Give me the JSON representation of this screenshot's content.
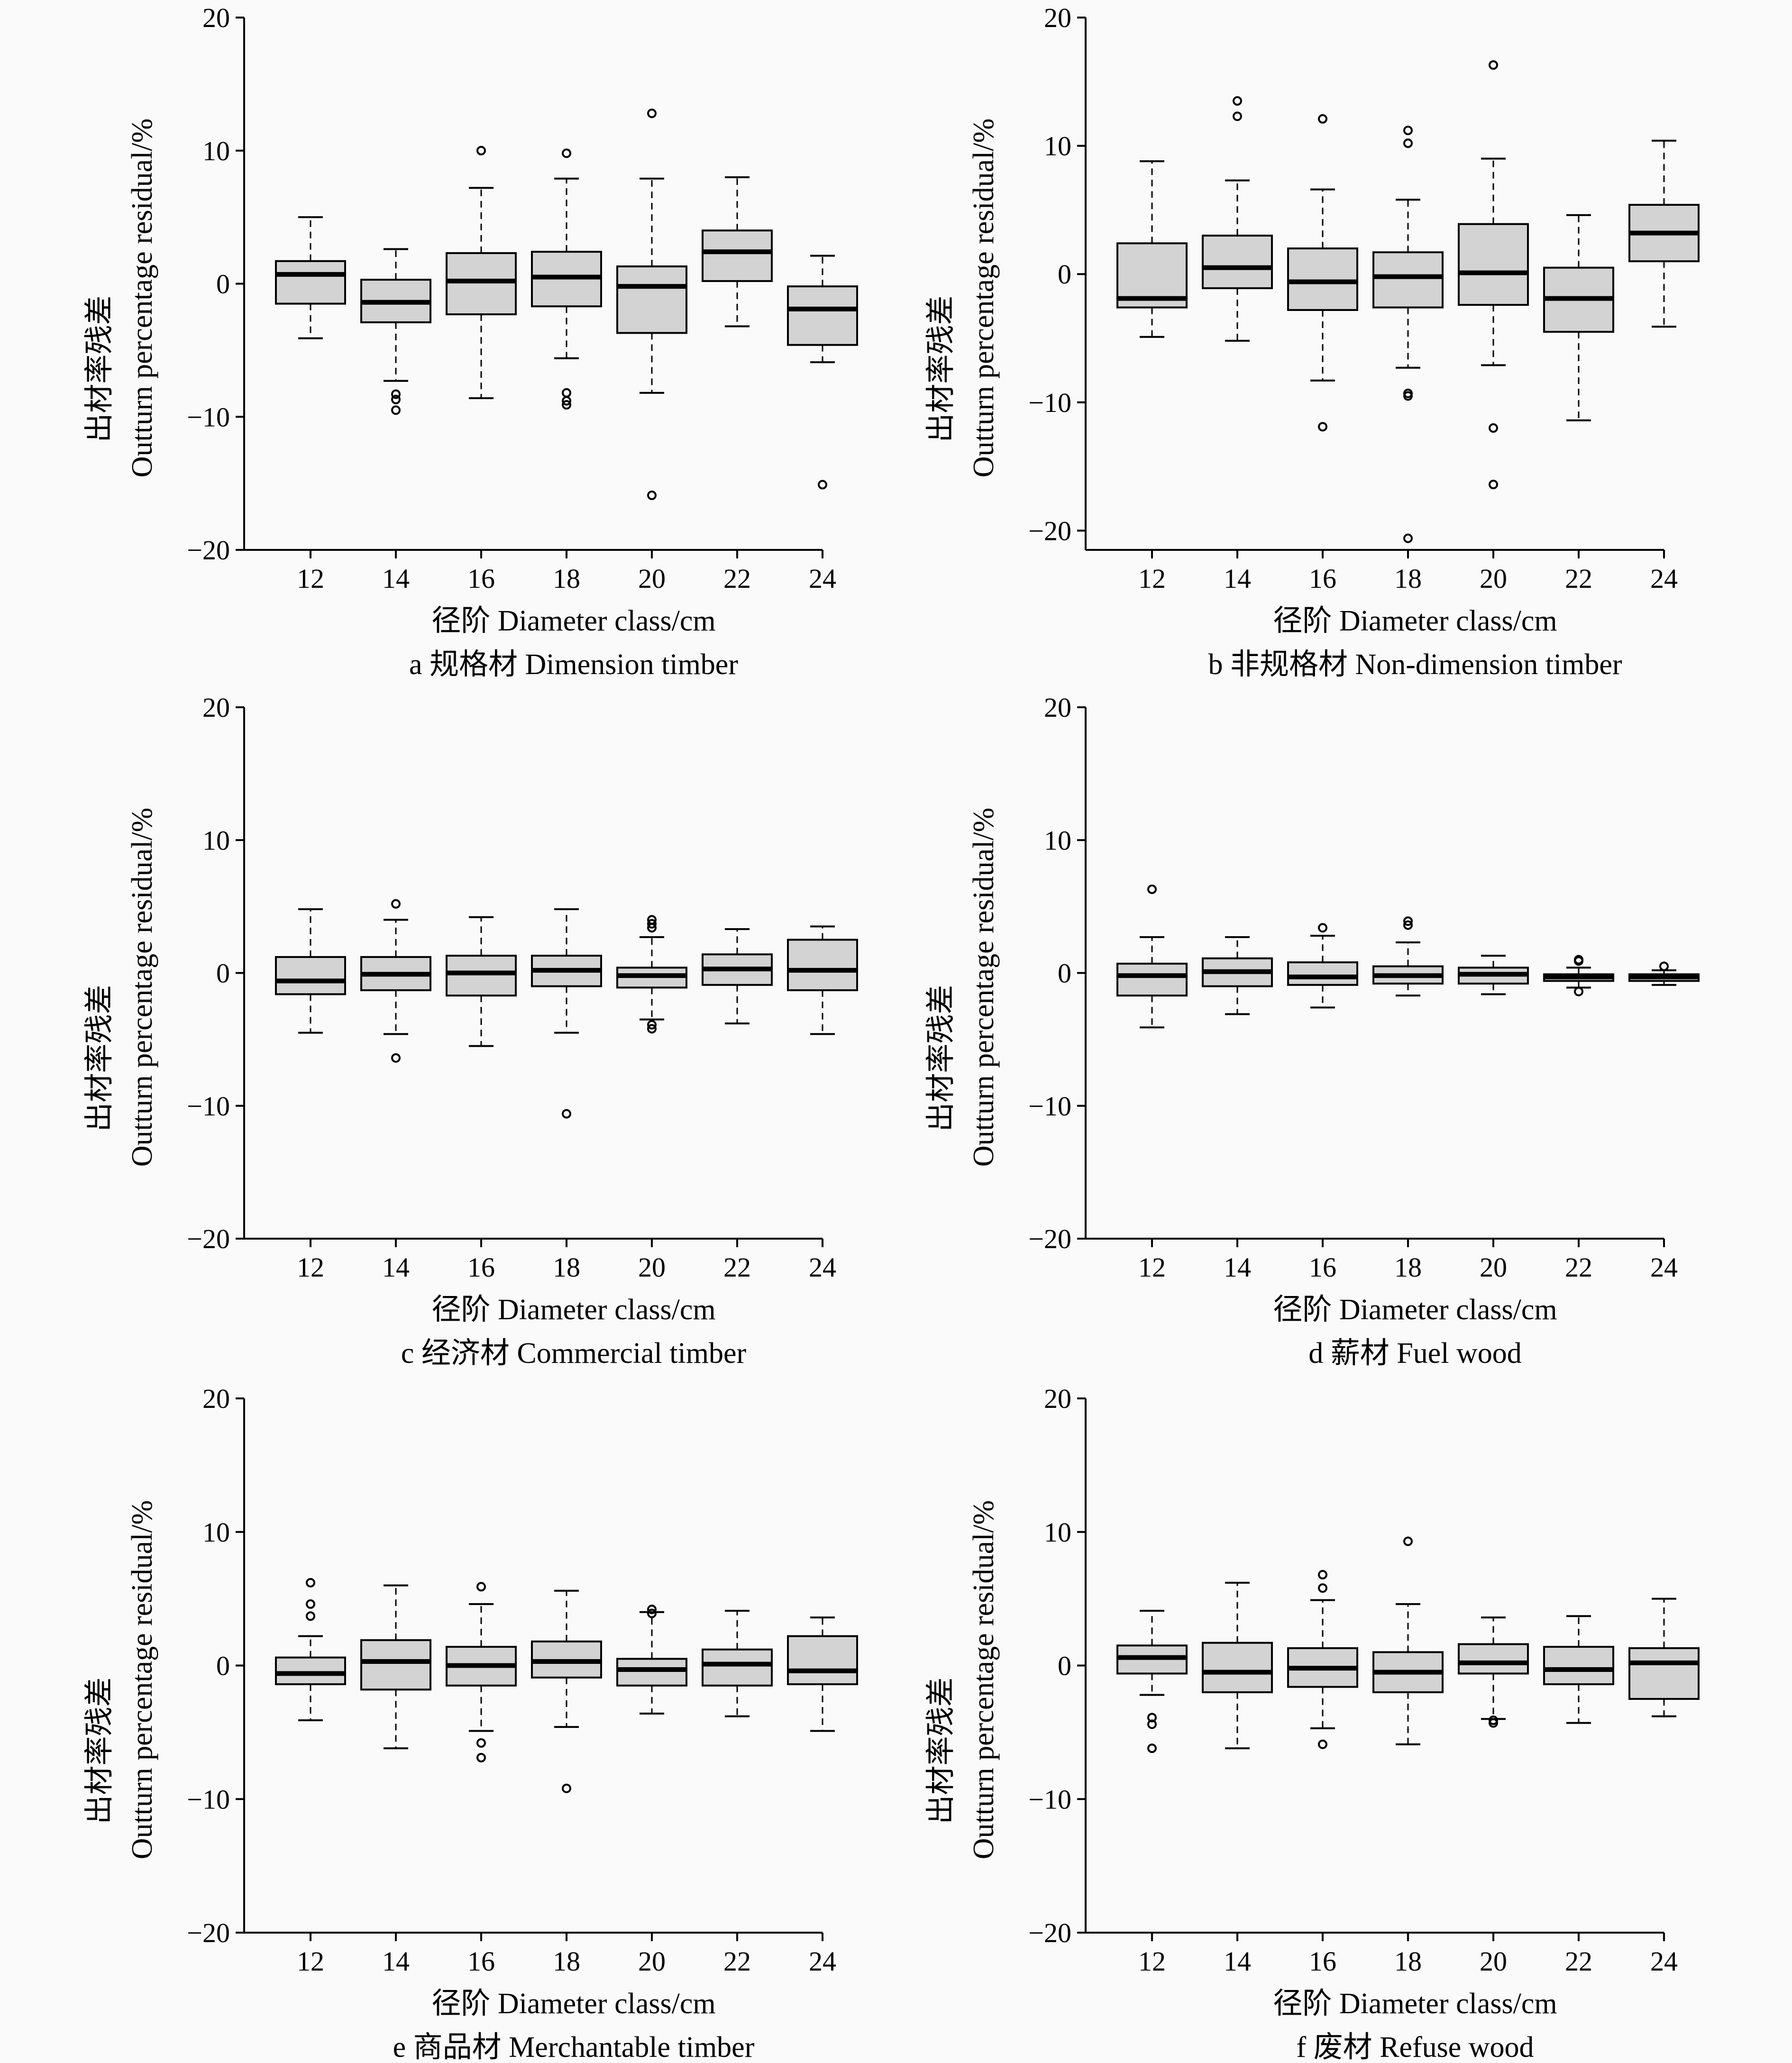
{
  "chart_data": [
    {
      "type": "box",
      "panel": "a",
      "caption": "a 规格材 Dimension timber",
      "ylabel_cn": "出材率残差",
      "ylabel_en": "Outturn percentage residual/%",
      "xlabel": "径阶 Diameter class/cm",
      "ylim": [
        -20,
        20
      ],
      "yticks": [
        "20",
        "10",
        "0",
        "−10",
        "−20"
      ],
      "categories": [
        "12",
        "14",
        "16",
        "18",
        "20",
        "22",
        "24"
      ],
      "boxes": [
        {
          "whislo": -4.1,
          "q1": -1.5,
          "med": 0.7,
          "q3": 1.7,
          "whishi": 5.0,
          "fliers": []
        },
        {
          "whislo": -7.3,
          "q1": -2.9,
          "med": -1.4,
          "q3": 0.3,
          "whishi": 2.6,
          "fliers": [
            -8.3,
            -8.7,
            -9.5
          ]
        },
        {
          "whislo": -8.6,
          "q1": -2.3,
          "med": 0.2,
          "q3": 2.3,
          "whishi": 7.2,
          "fliers": [
            10.0
          ]
        },
        {
          "whislo": -5.6,
          "q1": -1.7,
          "med": 0.5,
          "q3": 2.4,
          "whishi": 7.9,
          "fliers": [
            9.8,
            -8.2,
            -8.8,
            -9.1
          ]
        },
        {
          "whislo": -8.2,
          "q1": -3.7,
          "med": -0.2,
          "q3": 1.3,
          "whishi": 7.9,
          "fliers": [
            12.8,
            -15.9
          ]
        },
        {
          "whislo": -3.2,
          "q1": 0.2,
          "med": 2.4,
          "q3": 4.0,
          "whishi": 8.0,
          "fliers": []
        },
        {
          "whislo": -5.9,
          "q1": -4.6,
          "med": -1.9,
          "q3": -0.2,
          "whishi": 2.1,
          "fliers": [
            -15.1
          ]
        }
      ]
    },
    {
      "type": "box",
      "panel": "b",
      "caption": "b 非规格材 Non-dimension timber",
      "ylabel_cn": "出材率残差",
      "ylabel_en": "Outturn percentage residual/%",
      "xlabel": "径阶 Diameter class/cm",
      "ylim": [
        -21.5,
        20
      ],
      "yticks": [
        "20",
        "10",
        "0",
        "−10",
        "−20"
      ],
      "categories": [
        "12",
        "14",
        "16",
        "18",
        "20",
        "22",
        "24"
      ],
      "boxes": [
        {
          "whislo": -4.9,
          "q1": -2.6,
          "med": -1.9,
          "q3": 2.4,
          "whishi": 8.8,
          "fliers": []
        },
        {
          "whislo": -5.2,
          "q1": -1.1,
          "med": 0.5,
          "q3": 3.0,
          "whishi": 7.3,
          "fliers": [
            13.5,
            12.3
          ]
        },
        {
          "whislo": -8.3,
          "q1": -2.8,
          "med": -0.6,
          "q3": 2.0,
          "whishi": 6.6,
          "fliers": [
            12.1,
            -11.9
          ]
        },
        {
          "whislo": -7.3,
          "q1": -2.6,
          "med": -0.2,
          "q3": 1.7,
          "whishi": 5.8,
          "fliers": [
            11.2,
            10.2,
            -9.3,
            -9.5,
            -20.6
          ]
        },
        {
          "whislo": -7.1,
          "q1": -2.4,
          "med": 0.1,
          "q3": 3.9,
          "whishi": 9.0,
          "fliers": [
            16.3,
            -12.0,
            -16.4
          ]
        },
        {
          "whislo": -11.4,
          "q1": -4.5,
          "med": -1.9,
          "q3": 0.5,
          "whishi": 4.6,
          "fliers": []
        },
        {
          "whislo": -4.1,
          "q1": 1.0,
          "med": 3.2,
          "q3": 5.4,
          "whishi": 10.4,
          "fliers": []
        }
      ]
    },
    {
      "type": "box",
      "panel": "c",
      "caption": "c 经济材 Commercial timber",
      "ylabel_cn": "出材率残差",
      "ylabel_en": "Outturn percentage residual/%",
      "xlabel": "径阶 Diameter class/cm",
      "ylim": [
        -20,
        20
      ],
      "yticks": [
        "20",
        "10",
        "0",
        "−10",
        "−20"
      ],
      "categories": [
        "12",
        "14",
        "16",
        "18",
        "20",
        "22",
        "24"
      ],
      "boxes": [
        {
          "whislo": -4.5,
          "q1": -1.6,
          "med": -0.6,
          "q3": 1.2,
          "whishi": 4.8,
          "fliers": []
        },
        {
          "whislo": -4.6,
          "q1": -1.3,
          "med": -0.1,
          "q3": 1.2,
          "whishi": 4.0,
          "fliers": [
            5.2,
            -6.4
          ]
        },
        {
          "whislo": -5.5,
          "q1": -1.7,
          "med": 0.0,
          "q3": 1.3,
          "whishi": 4.2,
          "fliers": []
        },
        {
          "whislo": -4.5,
          "q1": -1.0,
          "med": 0.2,
          "q3": 1.3,
          "whishi": 4.8,
          "fliers": [
            -10.6
          ]
        },
        {
          "whislo": -3.5,
          "q1": -1.1,
          "med": -0.2,
          "q3": 0.4,
          "whishi": 2.7,
          "fliers": [
            4.0,
            3.7,
            3.4,
            -3.9,
            -4.2
          ]
        },
        {
          "whislo": -3.8,
          "q1": -0.9,
          "med": 0.3,
          "q3": 1.4,
          "whishi": 3.3,
          "fliers": []
        },
        {
          "whislo": -4.6,
          "q1": -1.3,
          "med": 0.2,
          "q3": 2.5,
          "whishi": 3.5,
          "fliers": []
        }
      ]
    },
    {
      "type": "box",
      "panel": "d",
      "caption": "d 薪材 Fuel wood",
      "ylabel_cn": "出材率残差",
      "ylabel_en": "Outturn percentage residual/%",
      "xlabel": "径阶 Diameter class/cm",
      "ylim": [
        -20,
        20
      ],
      "yticks": [
        "20",
        "10",
        "0",
        "−10",
        "−20"
      ],
      "categories": [
        "12",
        "14",
        "16",
        "18",
        "20",
        "22",
        "24"
      ],
      "boxes": [
        {
          "whislo": -4.1,
          "q1": -1.7,
          "med": -0.2,
          "q3": 0.7,
          "whishi": 2.7,
          "fliers": [
            6.3
          ]
        },
        {
          "whislo": -3.1,
          "q1": -1.0,
          "med": 0.1,
          "q3": 1.1,
          "whishi": 2.7,
          "fliers": []
        },
        {
          "whislo": -2.6,
          "q1": -0.9,
          "med": -0.3,
          "q3": 0.8,
          "whishi": 2.8,
          "fliers": [
            3.4
          ]
        },
        {
          "whislo": -1.7,
          "q1": -0.8,
          "med": -0.2,
          "q3": 0.5,
          "whishi": 2.3,
          "fliers": [
            3.9,
            3.6
          ]
        },
        {
          "whislo": -1.6,
          "q1": -0.8,
          "med": -0.1,
          "q3": 0.4,
          "whishi": 1.3,
          "fliers": []
        },
        {
          "whislo": -1.1,
          "q1": -0.6,
          "med": -0.3,
          "q3": -0.1,
          "whishi": 0.4,
          "fliers": [
            0.9,
            1.0,
            -1.4
          ]
        },
        {
          "whislo": -0.9,
          "q1": -0.6,
          "med": -0.3,
          "q3": -0.1,
          "whishi": 0.2,
          "fliers": [
            0.5
          ]
        }
      ]
    },
    {
      "type": "box",
      "panel": "e",
      "caption": "e 商品材 Merchantable timber",
      "ylabel_cn": "出材率残差",
      "ylabel_en": "Outturn percentage residual/%",
      "xlabel": "径阶 Diameter class/cm",
      "ylim": [
        -20,
        20
      ],
      "yticks": [
        "20",
        "10",
        "0",
        "−10",
        "−20"
      ],
      "categories": [
        "12",
        "14",
        "16",
        "18",
        "20",
        "22",
        "24"
      ],
      "boxes": [
        {
          "whislo": -4.1,
          "q1": -1.4,
          "med": -0.6,
          "q3": 0.6,
          "whishi": 2.2,
          "fliers": [
            6.2,
            4.6,
            3.7
          ]
        },
        {
          "whislo": -6.2,
          "q1": -1.8,
          "med": 0.3,
          "q3": 1.9,
          "whishi": 6.0,
          "fliers": []
        },
        {
          "whislo": -4.9,
          "q1": -1.5,
          "med": 0.0,
          "q3": 1.4,
          "whishi": 4.6,
          "fliers": [
            5.9,
            -5.8,
            -6.9
          ]
        },
        {
          "whislo": -4.6,
          "q1": -0.9,
          "med": 0.3,
          "q3": 1.8,
          "whishi": 5.6,
          "fliers": [
            -9.2
          ]
        },
        {
          "whislo": -3.6,
          "q1": -1.5,
          "med": -0.3,
          "q3": 0.5,
          "whishi": 4.0,
          "fliers": [
            4.2,
            3.9
          ]
        },
        {
          "whislo": -3.8,
          "q1": -1.5,
          "med": 0.1,
          "q3": 1.2,
          "whishi": 4.1,
          "fliers": []
        },
        {
          "whislo": -4.9,
          "q1": -1.4,
          "med": -0.4,
          "q3": 2.2,
          "whishi": 3.6,
          "fliers": []
        }
      ]
    },
    {
      "type": "box",
      "panel": "f",
      "caption": "f 废材 Refuse wood",
      "ylabel_cn": "出材率残差",
      "ylabel_en": "Outturn percentage residual/%",
      "xlabel": "径阶 Diameter class/cm",
      "ylim": [
        -20,
        20
      ],
      "yticks": [
        "20",
        "10",
        "0",
        "−10",
        "−20"
      ],
      "categories": [
        "12",
        "14",
        "16",
        "18",
        "20",
        "22",
        "24"
      ],
      "boxes": [
        {
          "whislo": -2.2,
          "q1": -0.6,
          "med": 0.6,
          "q3": 1.5,
          "whishi": 4.1,
          "fliers": [
            -3.9,
            -4.4,
            -6.2
          ]
        },
        {
          "whislo": -6.2,
          "q1": -2.0,
          "med": -0.5,
          "q3": 1.7,
          "whishi": 6.2,
          "fliers": []
        },
        {
          "whislo": -4.7,
          "q1": -1.6,
          "med": -0.2,
          "q3": 1.3,
          "whishi": 4.9,
          "fliers": [
            6.8,
            5.8,
            -5.9
          ]
        },
        {
          "whislo": -5.9,
          "q1": -2.0,
          "med": -0.5,
          "q3": 1.0,
          "whishi": 4.6,
          "fliers": [
            9.3
          ]
        },
        {
          "whislo": -4.0,
          "q1": -0.6,
          "med": 0.2,
          "q3": 1.6,
          "whishi": 3.6,
          "fliers": [
            -4.1,
            -4.3
          ]
        },
        {
          "whislo": -4.3,
          "q1": -1.4,
          "med": -0.3,
          "q3": 1.4,
          "whishi": 3.7,
          "fliers": []
        },
        {
          "whislo": -3.8,
          "q1": -2.5,
          "med": 0.2,
          "q3": 1.3,
          "whishi": 5.0,
          "fliers": []
        }
      ]
    }
  ]
}
